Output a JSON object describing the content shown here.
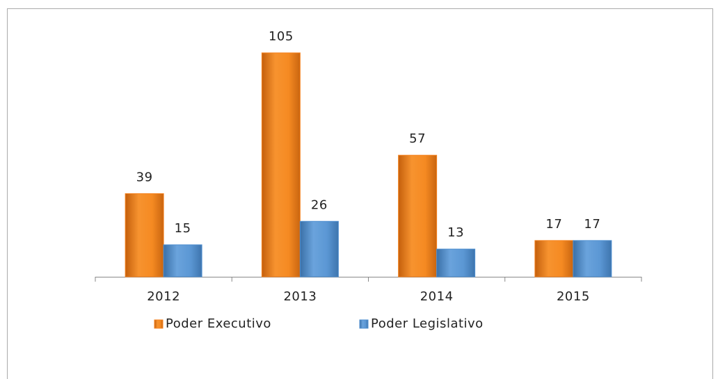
{
  "chart_data": {
    "type": "bar",
    "categories": [
      "2012",
      "2013",
      "2014",
      "2015"
    ],
    "series": [
      {
        "name": "Poder Executivo",
        "color": "#f5821f",
        "values": [
          39,
          105,
          57,
          17
        ]
      },
      {
        "name": "Poder Legislativo",
        "color": "#4f8fd0",
        "values": [
          15,
          26,
          13,
          17
        ]
      }
    ],
    "legend": "bottom"
  }
}
